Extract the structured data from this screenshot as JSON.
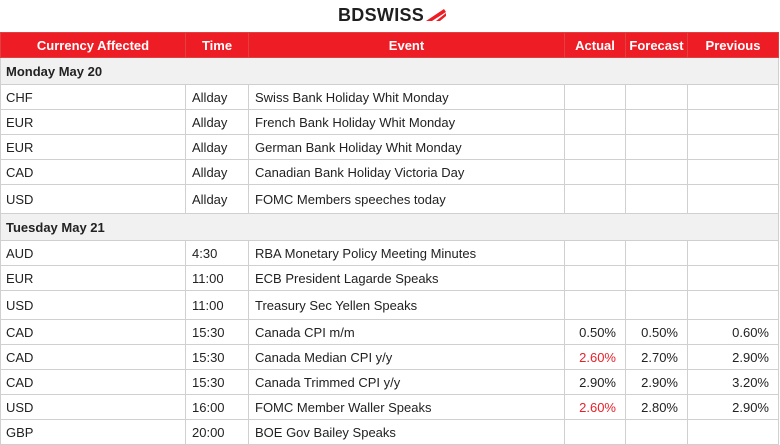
{
  "brand": {
    "name": "BDSWISS",
    "accent": "#ee1c24"
  },
  "headers": [
    "Currency Affected",
    "Time",
    "Event",
    "Actual",
    "Forecast",
    "Previous"
  ],
  "days": [
    {
      "date": "Monday May 20",
      "rows": [
        {
          "currency": "CHF",
          "time": "Allday",
          "event": "Swiss Bank Holiday Whit Monday",
          "actual": "",
          "forecast": "",
          "previous": ""
        },
        {
          "currency": "EUR",
          "time": "Allday",
          "event": "French Bank Holiday Whit Monday",
          "actual": "",
          "forecast": "",
          "previous": ""
        },
        {
          "currency": "EUR",
          "time": "Allday",
          "event": "German Bank Holiday Whit Monday",
          "actual": "",
          "forecast": "",
          "previous": ""
        },
        {
          "currency": "CAD",
          "time": "Allday",
          "event": "Canadian Bank Holiday Victoria Day",
          "actual": "",
          "forecast": "",
          "previous": ""
        },
        {
          "currency": "USD",
          "time": "Allday",
          "event": "FOMC Members speeches today",
          "actual": "",
          "forecast": "",
          "previous": ""
        }
      ]
    },
    {
      "date": "Tuesday May 21",
      "rows": [
        {
          "currency": "AUD",
          "time": "4:30",
          "event": "RBA Monetary Policy Meeting Minutes",
          "actual": "",
          "forecast": "",
          "previous": ""
        },
        {
          "currency": "EUR",
          "time": "11:00",
          "event": "ECB President Lagarde Speaks",
          "actual": "",
          "forecast": "",
          "previous": ""
        },
        {
          "currency": "USD",
          "time": "11:00",
          "event": "Treasury Sec Yellen Speaks",
          "actual": "",
          "forecast": "",
          "previous": ""
        },
        {
          "currency": "CAD",
          "time": "15:30",
          "event": "Canada CPI m/m",
          "actual": "0.50%",
          "forecast": "0.50%",
          "previous": "0.60%"
        },
        {
          "currency": "CAD",
          "time": "15:30",
          "event": "Canada Median CPI y/y",
          "actual": "2.60%",
          "actual_color": "#e8202a",
          "forecast": "2.70%",
          "previous": "2.90%"
        },
        {
          "currency": "CAD",
          "time": "15:30",
          "event": "Canada Trimmed CPI y/y",
          "actual": "2.90%",
          "forecast": "2.90%",
          "previous": "3.20%"
        },
        {
          "currency": "USD",
          "time": "16:00",
          "event": "FOMC Member Waller Speaks",
          "actual": "2.60%",
          "actual_color": "#e8202a",
          "forecast": "2.80%",
          "previous": "2.90%"
        },
        {
          "currency": "GBP",
          "time": "20:00",
          "event": "BOE Gov Bailey Speaks",
          "actual": "",
          "forecast": "",
          "previous": ""
        }
      ]
    }
  ]
}
